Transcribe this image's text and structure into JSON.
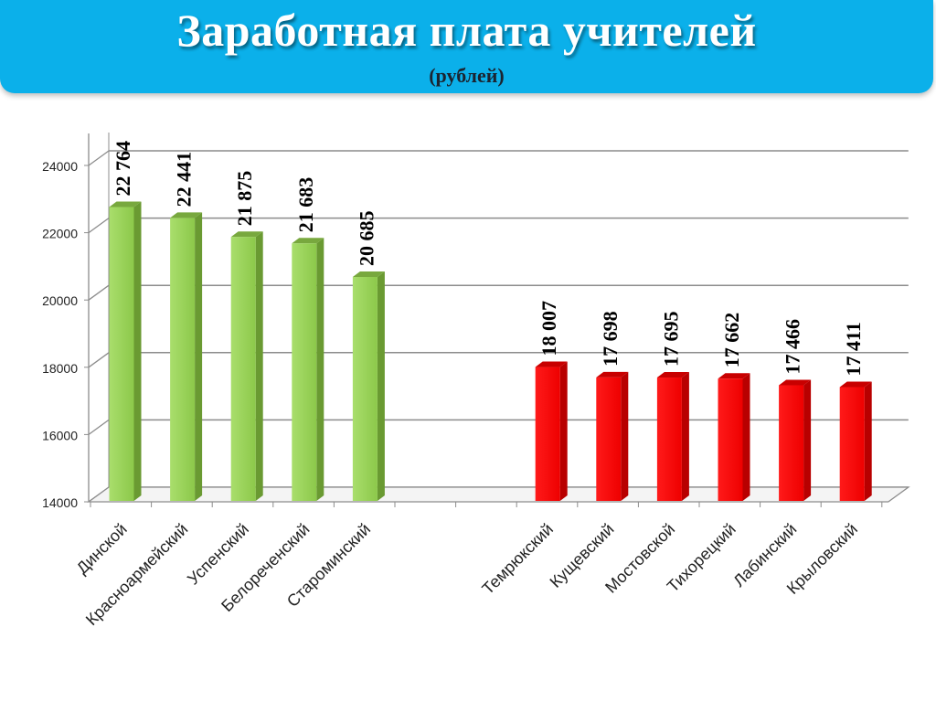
{
  "header": {
    "title": "Заработная плата учителей",
    "subtitle": "(рублей)"
  },
  "colors": {
    "banner": "#0bb0ea",
    "green_bar": "#92d050",
    "red_bar": "#ff0000",
    "gridline": "#8c8c8c"
  },
  "chart_data": {
    "type": "bar",
    "title": "Заработная плата учителей",
    "subtitle": "(рублей)",
    "xlabel": "",
    "ylabel": "",
    "ylim": [
      14000,
      24000
    ],
    "yticks": [
      "14000",
      "16000",
      "18000",
      "20000",
      "22000",
      "24000"
    ],
    "ytick_values": [
      14000,
      16000,
      18000,
      20000,
      22000,
      24000
    ],
    "grid": true,
    "legend": "none",
    "three_d": true,
    "categories": [
      "Динской",
      "Красноармейский",
      "Успенский",
      "Белореченский",
      "Староминский",
      "",
      "",
      "Темрюкский",
      "Кущевский",
      "Мостовской",
      "Тихорецкий",
      "Лабинский",
      "Крыловский"
    ],
    "values": [
      22764,
      22441,
      21875,
      21683,
      20685,
      null,
      null,
      18007,
      17698,
      17695,
      17662,
      17466,
      17411
    ],
    "value_labels": [
      "22 764",
      "22 441",
      "21 875",
      "21 683",
      "20 685",
      "",
      "",
      "18 007",
      "17 698",
      "17 695",
      "17 662",
      "17 466",
      "17 411"
    ],
    "bar_colors": [
      "green",
      "green",
      "green",
      "green",
      "green",
      "",
      "",
      "red",
      "red",
      "red",
      "red",
      "red",
      "red"
    ]
  }
}
